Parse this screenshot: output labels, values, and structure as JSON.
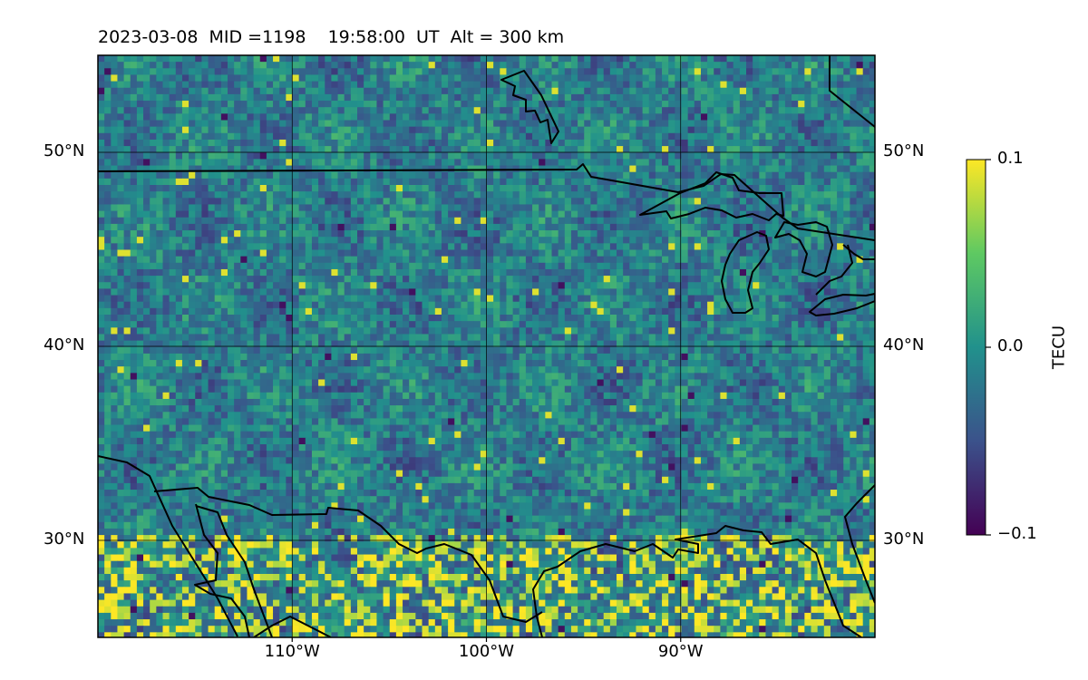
{
  "title": "2023-03-08  MID =1198    19:58:00  UT  Alt = 300 km",
  "map": {
    "lon_range": [
      -120,
      -80
    ],
    "lat_range": [
      25,
      55
    ],
    "lat_ticks": [
      {
        "value": 50,
        "label": "50°N"
      },
      {
        "value": 40,
        "label": "40°N"
      },
      {
        "value": 30,
        "label": "30°N"
      }
    ],
    "lon_ticks": [
      {
        "value": -110,
        "label": "110°W"
      },
      {
        "value": -100,
        "label": "100°W"
      },
      {
        "value": -90,
        "label": "90°W"
      }
    ],
    "gridlines": true,
    "colormap": "viridis",
    "features": [
      "coastlines",
      "country-borders",
      "great-lakes"
    ]
  },
  "colorbar": {
    "label": "TECU",
    "min": -0.1,
    "max": 0.1,
    "ticks": [
      {
        "value": 0.1,
        "label": "0.1"
      },
      {
        "value": 0.0,
        "label": "0.0"
      },
      {
        "value": -0.1,
        "label": "−0.1"
      }
    ],
    "colors": [
      "#440154",
      "#3b528b",
      "#21918c",
      "#5ec962",
      "#fde725"
    ]
  }
}
